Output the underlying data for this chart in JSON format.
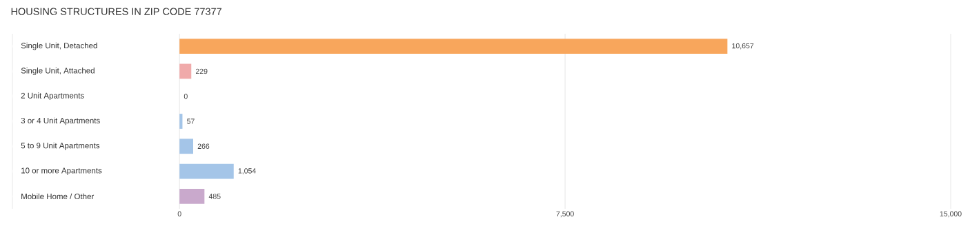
{
  "chart_data": {
    "type": "bar",
    "orientation": "horizontal",
    "title": "HOUSING STRUCTURES IN ZIP CODE 77377",
    "categories": [
      "Single Unit, Detached",
      "Single Unit, Attached",
      "2 Unit Apartments",
      "3 or 4 Unit Apartments",
      "5 to 9 Unit Apartments",
      "10 or more Apartments",
      "Mobile Home / Other"
    ],
    "values": [
      10657,
      229,
      0,
      57,
      266,
      1054,
      485
    ],
    "value_labels": [
      "10,657",
      "229",
      "0",
      "57",
      "266",
      "1,054",
      "485"
    ],
    "colors": [
      "#f8a65c",
      "#f0aaaa",
      "#a4c5e8",
      "#a4c5e8",
      "#a4c5e8",
      "#a4c5e8",
      "#c9a9cc"
    ],
    "xlim": [
      -3250,
      15000
    ],
    "xticks": [
      0,
      {
        "value": 7500,
        "label": "7,500"
      },
      {
        "value": 15000,
        "label": "15,000"
      }
    ],
    "grid": "x"
  }
}
